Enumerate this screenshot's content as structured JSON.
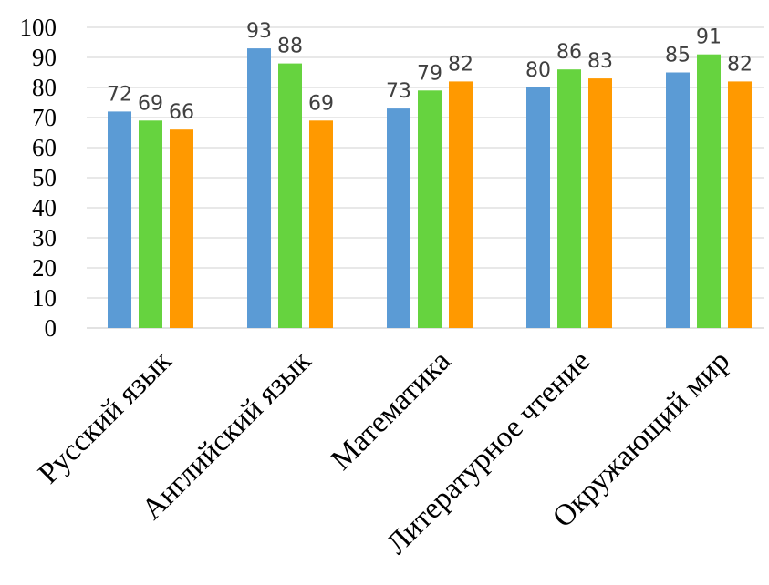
{
  "chart_data": {
    "type": "bar",
    "categories": [
      "Русский язык",
      "Английский язык",
      "Математика",
      "Литературное чтение",
      "Окружающий мир"
    ],
    "series": [
      {
        "values": [
          72,
          93,
          73,
          80,
          85
        ],
        "color": "#5b9bd5"
      },
      {
        "values": [
          69,
          88,
          79,
          86,
          91
        ],
        "color": "#66d33f"
      },
      {
        "values": [
          66,
          69,
          82,
          83,
          82
        ],
        "color": "#ff9900"
      }
    ],
    "ylim": [
      0,
      100
    ],
    "yticks": [
      0,
      10,
      20,
      30,
      40,
      50,
      60,
      70,
      80,
      90,
      100
    ],
    "grid": true,
    "data_labels": true,
    "gridline_color": "#d9d9d9",
    "label_color": "#404040"
  }
}
